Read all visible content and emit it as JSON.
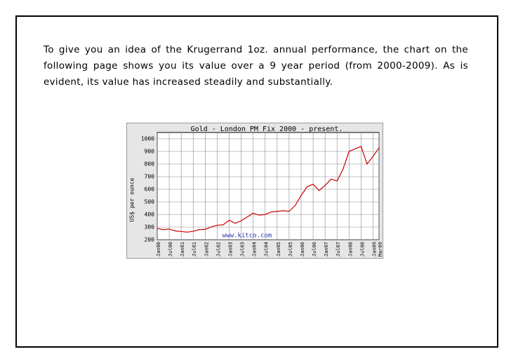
{
  "paragraph": "To give you an idea of the Krugerrand 1oz. annual performance, the chart on the following page shows you its value over a 9 year period (from 2000-2009). As is evident, its value has increased steadily and substantially.",
  "chart_data": {
    "type": "line",
    "title": "Gold - London PM Fix 2000 - present.",
    "ylabel": "US$ per ounce",
    "annotation": "www.kitco.com",
    "x": [
      "Jan00",
      "Apr00",
      "Jul00",
      "Oct00",
      "Jan01",
      "Apr01",
      "Jul01",
      "Oct01",
      "Jan02",
      "Apr02",
      "Jul02",
      "Oct02",
      "Jan03",
      "Apr03",
      "Jul03",
      "Oct03",
      "Jan04",
      "Apr04",
      "Jul04",
      "Oct04",
      "Jan05",
      "Apr05",
      "Jul05",
      "Oct05",
      "Jan06",
      "Apr06",
      "Jul06",
      "Oct06",
      "Jan07",
      "Apr07",
      "Jul07",
      "Oct07",
      "Jan08",
      "Apr08",
      "Jul08",
      "Oct08",
      "Jan09",
      "Mar09"
    ],
    "series": [
      {
        "name": "Gold",
        "color": "#cc0000",
        "values": [
          290,
          280,
          285,
          270,
          265,
          260,
          267,
          280,
          282,
          302,
          315,
          318,
          355,
          330,
          350,
          380,
          410,
          395,
          400,
          420,
          425,
          430,
          425,
          470,
          550,
          620,
          640,
          590,
          630,
          680,
          665,
          760,
          900,
          920,
          940,
          800,
          860,
          930
        ]
      }
    ],
    "xticks": [
      "Jan00",
      "Jul00",
      "Jan01",
      "Jul01",
      "Jan02",
      "Jul02",
      "Jan03",
      "Jul03",
      "Jan04",
      "Jul04",
      "Jan05",
      "Jul05",
      "Jan06",
      "Jul06",
      "Jan07",
      "Jul07",
      "Jan08",
      "Jul08",
      "Jan09",
      "Mar09"
    ],
    "ylim": [
      200,
      1050
    ],
    "yticks": [
      200,
      300,
      400,
      500,
      600,
      700,
      800,
      900,
      1000
    ],
    "grid": true
  }
}
